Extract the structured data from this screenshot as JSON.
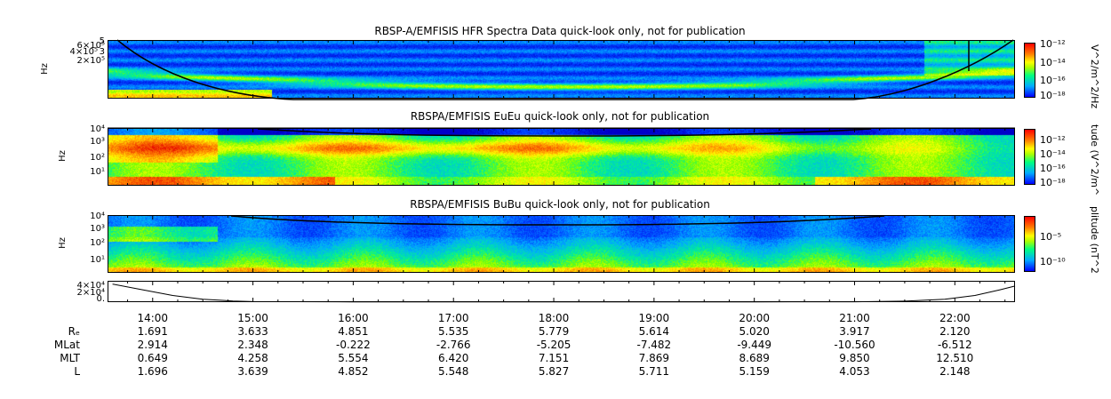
{
  "chart_data": [
    {
      "type": "heatmap",
      "title": "RBSP-A/EMFISIS  HFR Spectra Data quick-look only, not for publication",
      "ylabel": "Hz",
      "yticks": [
        "6×10⁵",
        "5",
        "4×10⁵",
        "3",
        "2×10⁵"
      ],
      "colorbar_label": "V^2/m^2/Hz",
      "colorbar_ticks": [
        "10⁻¹²",
        "10⁻¹⁴",
        "10⁻¹⁶",
        "10⁻¹⁸"
      ],
      "colorbar_range_exp": [
        -18.5,
        -11.5
      ],
      "curve": "black line (fce) descending from top-left, rising to top-right"
    },
    {
      "type": "heatmap",
      "title": "RBSPA/EMFISIS  EuEu quick-look only, not for publication",
      "ylabel": "Hz",
      "yticks": [
        "10⁴",
        "10³",
        "10²",
        "10¹"
      ],
      "ylim_exp": [
        -0.5,
        4.2
      ],
      "colorbar_label": "tude (V^2/m^",
      "colorbar_ticks": [
        "10⁻¹²",
        "10⁻¹⁴",
        "10⁻¹⁶",
        "10⁻¹⁸"
      ]
    },
    {
      "type": "heatmap",
      "title": "RBSPA/EMFISIS  BuBu quick-look only, not for publication",
      "ylabel": "Hz",
      "yticks": [
        "10⁴",
        "10³",
        "10²",
        "10¹"
      ],
      "ylim_exp": [
        0.3,
        4.3
      ],
      "colorbar_label": "plitude (nT^2",
      "colorbar_ticks": [
        "10⁻⁵",
        "10⁻¹⁰"
      ]
    },
    {
      "type": "line",
      "yticks": [
        "4×10⁴",
        "2×10⁴",
        "0."
      ],
      "ylim": [
        0,
        45000
      ],
      "x": [
        13.6,
        13.9,
        14.2,
        14.5,
        14.8,
        15.0,
        16.0,
        17.0,
        18.0,
        19.0,
        20.0,
        21.0,
        21.5,
        21.9,
        22.2,
        22.45,
        22.6
      ],
      "y": [
        38000,
        26000,
        14000,
        6000,
        2500,
        1200,
        600,
        400,
        350,
        380,
        500,
        800,
        2000,
        6000,
        14000,
        26000,
        34000
      ]
    }
  ],
  "xaxis": {
    "labels": [
      "14:00",
      "15:00",
      "16:00",
      "17:00",
      "18:00",
      "19:00",
      "20:00",
      "21:00",
      "22:00"
    ],
    "hours": [
      14,
      15,
      16,
      17,
      18,
      19,
      20,
      21,
      22
    ],
    "range_hours": [
      13.55,
      22.6
    ]
  },
  "ephemeris": [
    {
      "name": "Rₑ",
      "values": [
        "1.691",
        "3.633",
        "4.851",
        "5.535",
        "5.779",
        "5.614",
        "5.020",
        "3.917",
        "2.120"
      ]
    },
    {
      "name": "MLat",
      "values": [
        "2.914",
        "2.348",
        "-0.222",
        "-2.766",
        "-5.205",
        "-7.482",
        "-9.449",
        "-10.560",
        "-6.512"
      ]
    },
    {
      "name": "MLT",
      "values": [
        "0.649",
        "4.258",
        "5.554",
        "6.420",
        "7.151",
        "7.869",
        "8.689",
        "9.850",
        "12.510"
      ]
    },
    {
      "name": "L",
      "values": [
        "1.696",
        "3.639",
        "4.852",
        "5.548",
        "5.827",
        "5.711",
        "5.159",
        "4.053",
        "2.148"
      ]
    }
  ]
}
